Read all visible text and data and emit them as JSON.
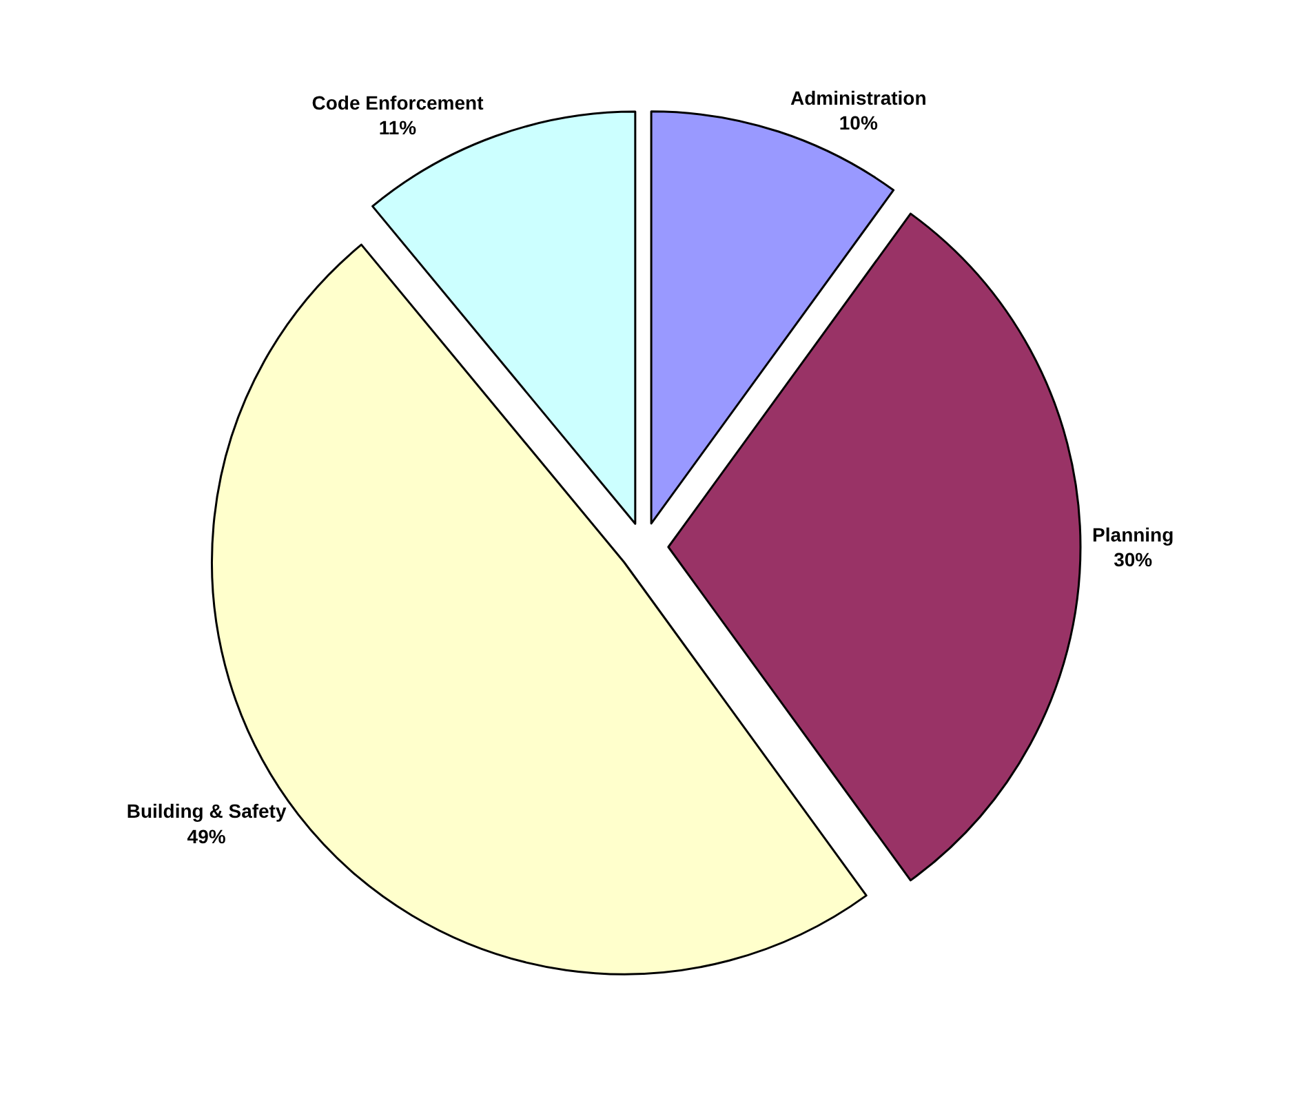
{
  "chart_data": {
    "type": "pie",
    "categories": [
      "Administration",
      "Planning",
      "Building & Safety",
      "Code Enforcement"
    ],
    "values": [
      10,
      30,
      49,
      11
    ],
    "value_labels": [
      "10%",
      "30%",
      "49%",
      "11%"
    ],
    "colors": [
      "#9999ff",
      "#993366",
      "#ffffcc",
      "#ccffff"
    ],
    "legend": false
  }
}
